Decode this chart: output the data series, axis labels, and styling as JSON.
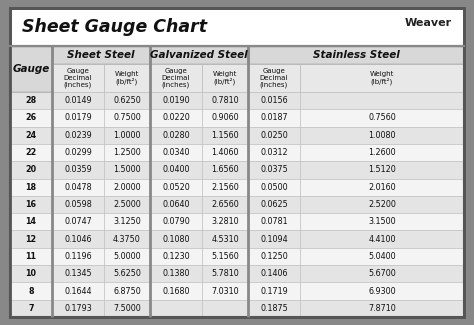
{
  "title": "Sheet Gauge Chart",
  "bg_outer": "#888888",
  "bg_inner": "#ffffff",
  "title_bg": "#ffffff",
  "header_bg": "#d8d8d8",
  "subheader_bg": "#e8e8e8",
  "row_odd": "#e4e4e4",
  "row_even": "#f4f4f4",
  "divider_color": "#888888",
  "border_color": "#555555",
  "gauges": [
    28,
    26,
    24,
    22,
    20,
    18,
    16,
    14,
    12,
    11,
    10,
    8,
    7
  ],
  "sheet_steel": {
    "label": "Sheet Steel",
    "decimal": [
      "0.0149",
      "0.0179",
      "0.0239",
      "0.0299",
      "0.0359",
      "0.0478",
      "0.0598",
      "0.0747",
      "0.1046",
      "0.1196",
      "0.1345",
      "0.1644",
      "0.1793"
    ],
    "weight": [
      "0.6250",
      "0.7500",
      "1.0000",
      "1.2500",
      "1.5000",
      "2.0000",
      "2.5000",
      "3.1250",
      "4.3750",
      "5.0000",
      "5.6250",
      "6.8750",
      "7.5000"
    ]
  },
  "galvanized_steel": {
    "label": "Galvanized Steel",
    "decimal": [
      "0.0190",
      "0.0220",
      "0.0280",
      "0.0340",
      "0.0400",
      "0.0520",
      "0.0640",
      "0.0790",
      "0.1080",
      "0.1230",
      "0.1380",
      "0.1680",
      ""
    ],
    "weight": [
      "0.7810",
      "0.9060",
      "1.1560",
      "1.4060",
      "1.6560",
      "2.1560",
      "2.6560",
      "3.2810",
      "4.5310",
      "5.1560",
      "5.7810",
      "7.0310",
      ""
    ]
  },
  "stainless_steel": {
    "label": "Stainless Steel",
    "decimal": [
      "0.0156",
      "0.0187",
      "0.0250",
      "0.0312",
      "0.0375",
      "0.0500",
      "0.0625",
      "0.0781",
      "0.1094",
      "0.1250",
      "0.1406",
      "0.1719",
      "0.1875"
    ],
    "weight": [
      "",
      "0.7560",
      "1.0080",
      "1.2600",
      "1.5120",
      "2.0160",
      "2.5200",
      "3.1500",
      "4.4100",
      "5.0400",
      "5.6700",
      "6.9300",
      "7.8710"
    ]
  }
}
